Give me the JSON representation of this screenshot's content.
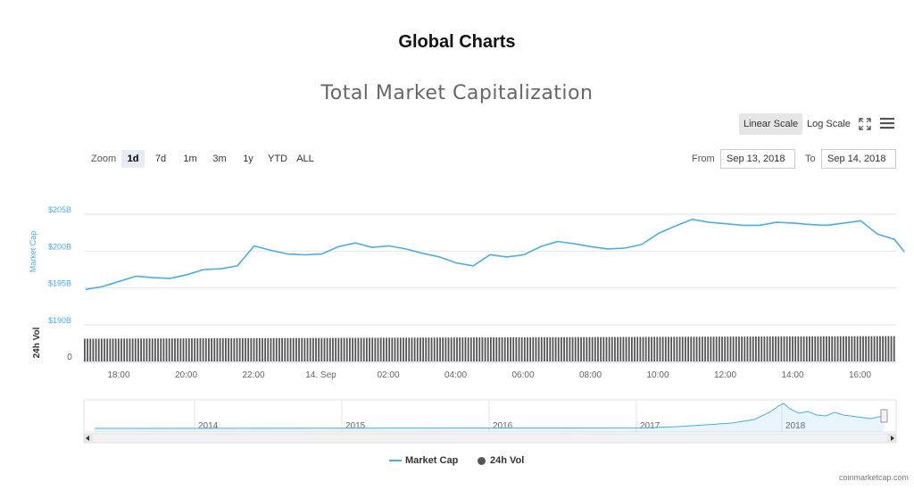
{
  "page": {
    "title": "Global Charts"
  },
  "toolbar": {
    "linear_scale": "Linear Scale",
    "log_scale": "Log Scale",
    "fullscreen_icon": "fullscreen-icon",
    "menu_icon": "hamburger-menu-icon"
  },
  "zoom": {
    "label": "Zoom",
    "options": [
      "1d",
      "7d",
      "1m",
      "3m",
      "1y",
      "YTD",
      "ALL"
    ],
    "selected": "1d"
  },
  "range": {
    "from_label": "From",
    "from_value": "Sep 13, 2018",
    "to_label": "To",
    "to_value": "Sep 14, 2018"
  },
  "colors": {
    "market_cap": "#4aaee4",
    "volume": "#555555",
    "grid": "#e6e6e6"
  },
  "chart_data": {
    "type": "line",
    "title": "Total Market Capitalization",
    "x_ticks": [
      "18:00",
      "20:00",
      "22:00",
      "14. Sep",
      "02:00",
      "04:00",
      "06:00",
      "08:00",
      "10:00",
      "12:00",
      "14:00",
      "16:00"
    ],
    "y_ticks": [
      "$190B",
      "$195B",
      "$200B",
      "$205B"
    ],
    "ylim": [
      190,
      205
    ],
    "ylabel": "Market Cap",
    "vol_ylabel": "24h Vol",
    "vol_ytick": "0",
    "series": [
      {
        "name": "Market Cap",
        "x_hours": [
          0,
          0.5,
          1,
          1.5,
          2,
          2.5,
          3,
          3.5,
          4,
          4.5,
          5,
          5.5,
          6,
          6.5,
          7,
          7.5,
          8,
          8.5,
          9,
          9.5,
          10,
          10.5,
          11,
          11.5,
          12,
          12.5,
          13,
          13.5,
          14,
          14.5,
          15,
          15.5,
          16,
          16.5,
          17,
          17.5,
          18,
          18.5,
          19,
          19.5,
          20,
          20.5,
          21,
          21.5,
          22,
          22.5,
          23,
          23.5,
          24,
          24.3
        ],
        "values": [
          194.8,
          195.2,
          195.9,
          196.6,
          196.4,
          196.3,
          196.8,
          197.5,
          197.6,
          198.0,
          200.7,
          200.1,
          199.6,
          199.5,
          199.6,
          200.6,
          201.1,
          200.5,
          200.7,
          200.3,
          199.7,
          199.2,
          198.4,
          198.0,
          199.5,
          199.2,
          199.5,
          200.6,
          201.3,
          201.0,
          200.6,
          200.3,
          200.4,
          200.9,
          202.4,
          203.4,
          204.3,
          203.9,
          203.7,
          203.5,
          203.5,
          203.9,
          203.8,
          203.6,
          203.5,
          203.8,
          204.1,
          202.3,
          201.6,
          199.9
        ]
      },
      {
        "name": "24h Vol",
        "values": []
      }
    ],
    "navigator": {
      "years": [
        "2014",
        "2015",
        "2016",
        "2017",
        "2018"
      ]
    },
    "legend": [
      "Market Cap",
      "24h Vol"
    ],
    "legend_position": "bottom-center"
  },
  "credit": "coinmarketcap.com"
}
